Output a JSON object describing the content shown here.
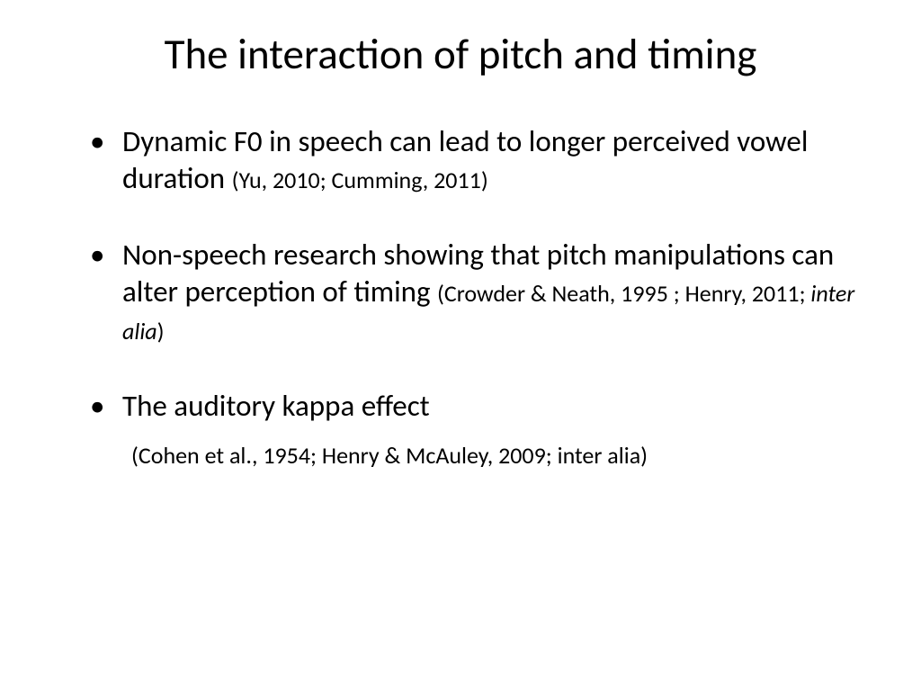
{
  "slide": {
    "title": "The interaction of pitch and timing",
    "bullets": [
      {
        "main": "Dynamic F0 in speech can lead to longer perceived vowel duration ",
        "cite": "(Yu, 2010; Cumming, 2011)"
      },
      {
        "main": "Non-speech research showing that pitch manipulations can alter perception of timing ",
        "cite_prefix": "(Crowder & Neath, 1995 ; Henry, 2011; ",
        "cite_italic": "inter alia",
        "cite_suffix": ")"
      },
      {
        "main": "The auditory kappa effect",
        "sub_cite": "(Cohen et al., 1954; Henry & McAuley, 2009; inter alia)"
      }
    ]
  },
  "style": {
    "background_color": "#ffffff",
    "text_color": "#000000",
    "title_fontsize": 47,
    "body_fontsize": 33,
    "citation_fontsize": 26,
    "font_family": "Calibri"
  }
}
